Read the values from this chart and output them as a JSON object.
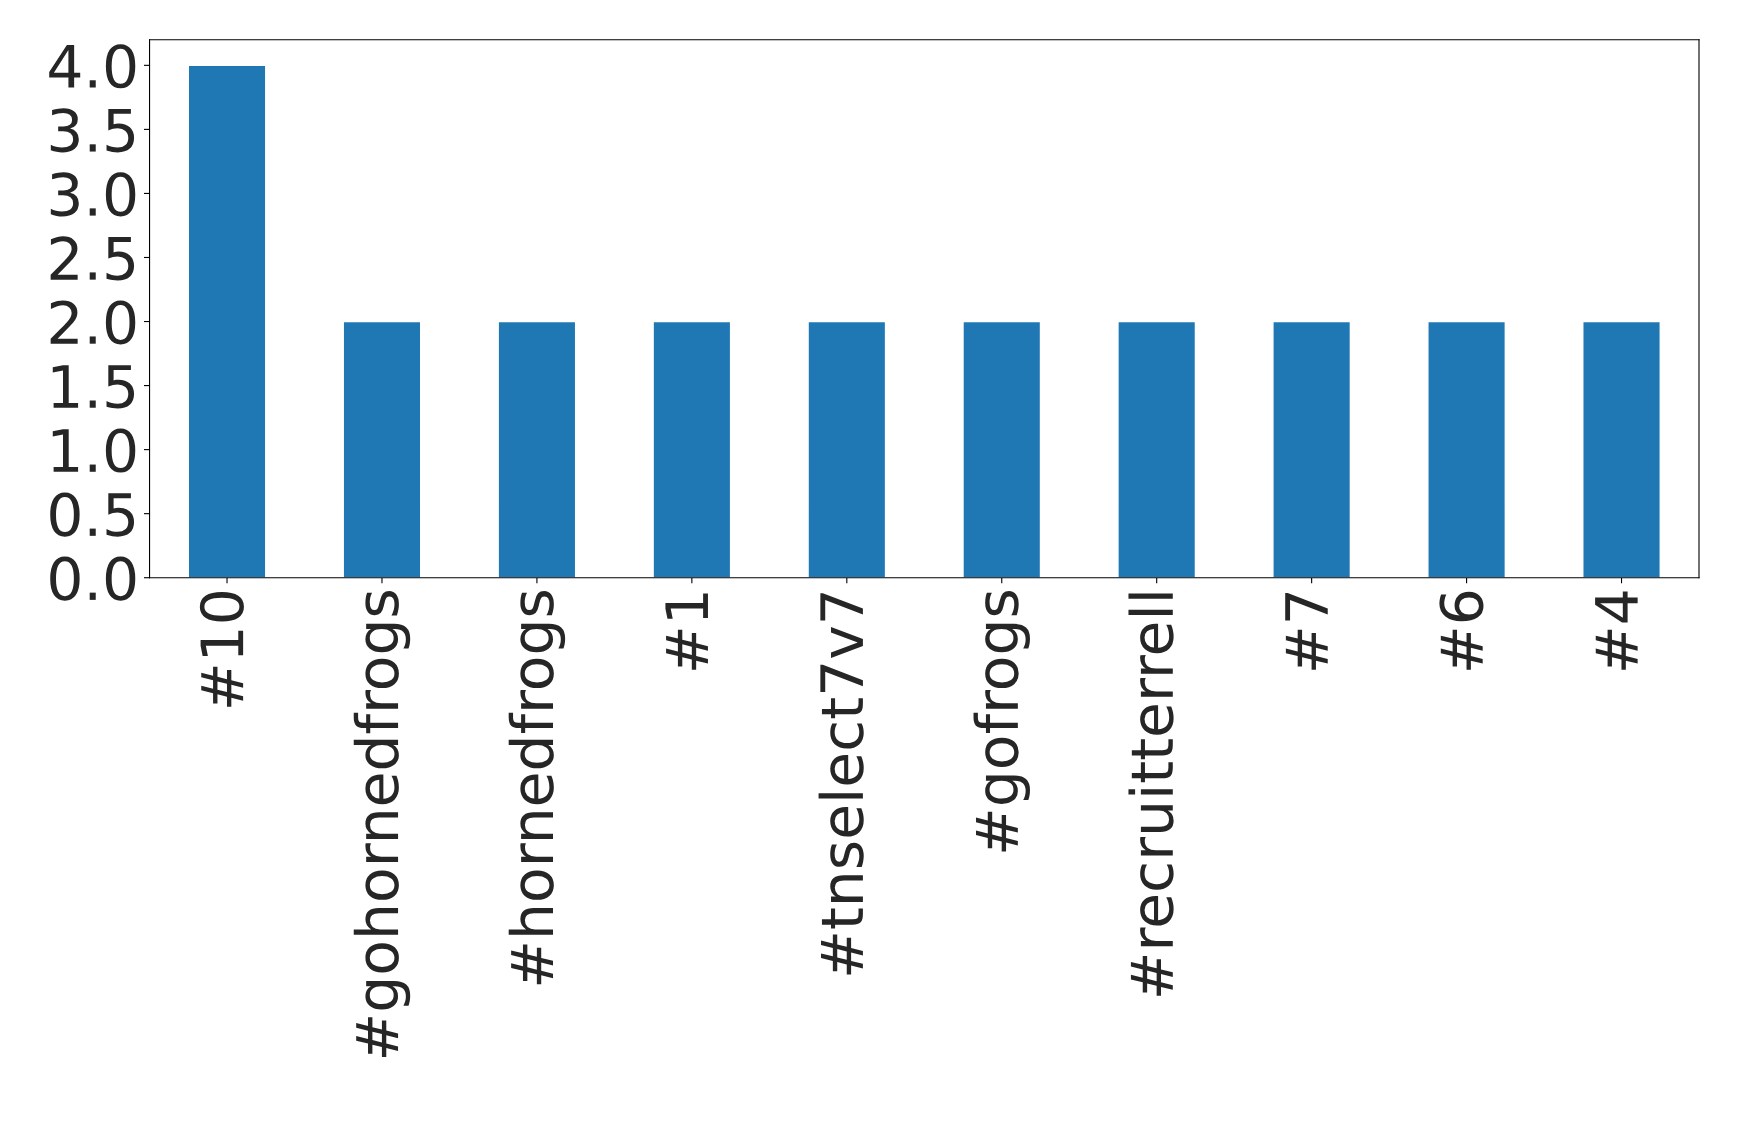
{
  "chart_data": {
    "type": "bar",
    "categories": [
      "#10",
      "#gohornedfrogs",
      "#hornedfrogs",
      "#1",
      "#tnselect7v7",
      "#gofrogs",
      "#recruitterrell",
      "#7",
      "#6",
      "#4"
    ],
    "values": [
      4,
      2,
      2,
      2,
      2,
      2,
      2,
      2,
      2,
      2
    ],
    "color": "#1f77b4",
    "ylim": [
      0,
      4.2
    ],
    "yticks": [
      {
        "value": 0,
        "label": "0.0"
      },
      {
        "value": 0.5,
        "label": "0.5"
      },
      {
        "value": 1,
        "label": "1.0"
      },
      {
        "value": 1.5,
        "label": "1.5"
      },
      {
        "value": 2,
        "label": "2.0"
      },
      {
        "value": 2.5,
        "label": "2.5"
      },
      {
        "value": 3,
        "label": "3.0"
      },
      {
        "value": 3.5,
        "label": "3.5"
      },
      {
        "value": 4,
        "label": "4.0"
      }
    ],
    "grid": false,
    "legend": false
  }
}
